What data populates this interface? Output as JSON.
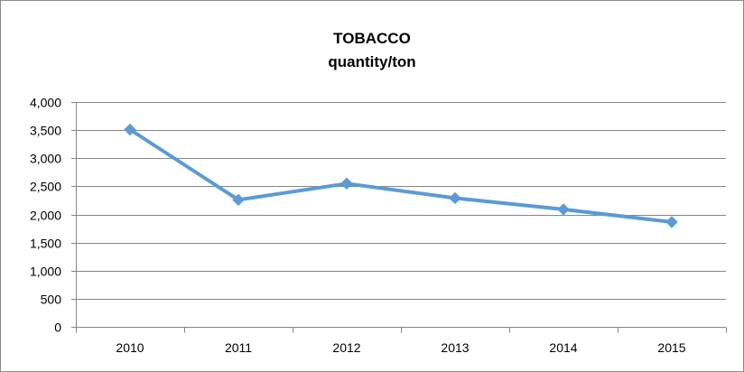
{
  "chart_data": {
    "type": "line",
    "title": "TOBACCO",
    "subtitle": "quantity/ton",
    "categories": [
      "2010",
      "2011",
      "2012",
      "2013",
      "2014",
      "2015"
    ],
    "series": [
      {
        "values": [
          3510,
          2260,
          2550,
          2290,
          2090,
          1865
        ],
        "color": "#5B9BD5",
        "marker": "diamond"
      }
    ],
    "ylim": [
      0,
      4000
    ],
    "yticks": [
      0,
      500,
      1000,
      1500,
      2000,
      2500,
      3000,
      3500,
      4000
    ],
    "ytick_labels": [
      "0",
      "500",
      "1,000",
      "1,500",
      "2,000",
      "2,500",
      "3,000",
      "3,500",
      "4,000"
    ],
    "grid": true,
    "legend": "none"
  }
}
